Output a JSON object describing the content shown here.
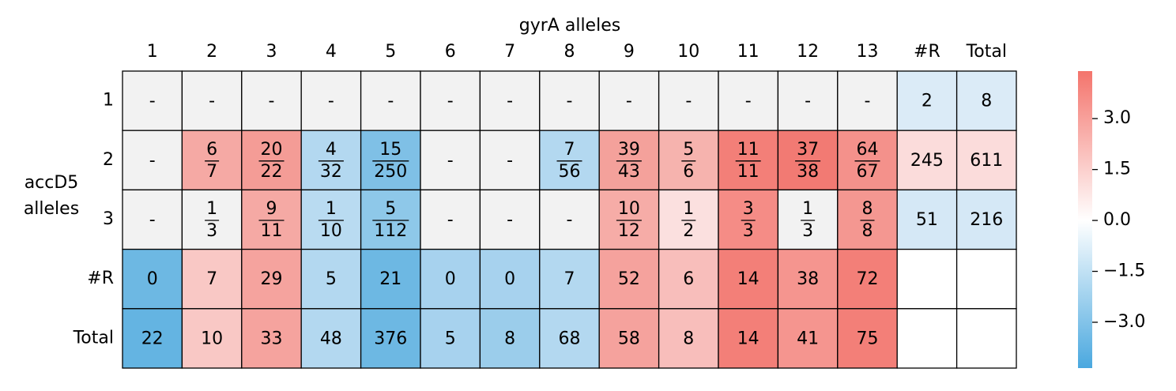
{
  "x_title": "gyrA alleles",
  "y_title": [
    "accD5",
    "alleles"
  ],
  "columns": [
    "1",
    "2",
    "3",
    "4",
    "5",
    "6",
    "7",
    "8",
    "9",
    "10",
    "11",
    "12",
    "13",
    "#R",
    "Total"
  ],
  "rows": [
    "1",
    "2",
    "3",
    "#R",
    "Total"
  ],
  "cells": [
    [
      {
        "text": "-",
        "color": "#f2f2f2"
      },
      {
        "text": "-",
        "color": "#f2f2f2"
      },
      {
        "text": "-",
        "color": "#f2f2f2"
      },
      {
        "text": "-",
        "color": "#f2f2f2"
      },
      {
        "text": "-",
        "color": "#f2f2f2"
      },
      {
        "text": "-",
        "color": "#f2f2f2"
      },
      {
        "text": "-",
        "color": "#f2f2f2"
      },
      {
        "text": "-",
        "color": "#f2f2f2"
      },
      {
        "text": "-",
        "color": "#f2f2f2"
      },
      {
        "text": "-",
        "color": "#f2f2f2"
      },
      {
        "text": "-",
        "color": "#f2f2f2"
      },
      {
        "text": "-",
        "color": "#f2f2f2"
      },
      {
        "text": "-",
        "color": "#f2f2f2"
      },
      {
        "text": 2,
        "color": "#dbebf7"
      },
      {
        "text": 8,
        "color": "#dbebf7"
      }
    ],
    [
      {
        "text": "-",
        "color": "#f2f2f2"
      },
      {
        "num": 6,
        "den": 7,
        "color": "#f5a9a4"
      },
      {
        "num": 20,
        "den": 22,
        "color": "#f49c96"
      },
      {
        "num": 4,
        "den": 32,
        "color": "#b3d8f0"
      },
      {
        "num": 15,
        "den": 250,
        "color": "#7fc0e6"
      },
      {
        "text": "-",
        "color": "#f2f2f2"
      },
      {
        "text": "-",
        "color": "#f2f2f2"
      },
      {
        "num": 7,
        "den": 56,
        "color": "#b3d8f0"
      },
      {
        "num": 39,
        "den": 43,
        "color": "#f4a19b"
      },
      {
        "num": 5,
        "den": 6,
        "color": "#f6b3ae"
      },
      {
        "num": 11,
        "den": 11,
        "color": "#f37f78"
      },
      {
        "num": 37,
        "den": 38,
        "color": "#f27a73"
      },
      {
        "num": 64,
        "den": 67,
        "color": "#f4918b"
      },
      {
        "text": 245,
        "color": "#fbdcdb"
      },
      {
        "text": 611,
        "color": "#fbdcdb"
      }
    ],
    [
      {
        "text": "-",
        "color": "#f2f2f2"
      },
      {
        "num": 1,
        "den": 3,
        "color": "#f2f2f2"
      },
      {
        "num": 9,
        "den": 11,
        "color": "#f5a9a4"
      },
      {
        "num": 1,
        "den": 10,
        "color": "#b9dbf1"
      },
      {
        "num": 5,
        "den": 112,
        "color": "#8ec8e9"
      },
      {
        "text": "-",
        "color": "#f2f2f2"
      },
      {
        "text": "-",
        "color": "#f2f2f2"
      },
      {
        "text": "-",
        "color": "#f2f2f2"
      },
      {
        "num": 10,
        "den": 12,
        "color": "#f6aca7"
      },
      {
        "num": 1,
        "den": 2,
        "color": "#fbe0df"
      },
      {
        "num": 3,
        "den": 3,
        "color": "#f58c86"
      },
      {
        "num": 1,
        "den": 3,
        "color": "#f2f2f2"
      },
      {
        "num": 8,
        "den": 8,
        "color": "#f49791"
      },
      {
        "text": 51,
        "color": "#d5e8f6"
      },
      {
        "text": 216,
        "color": "#d5e8f6"
      }
    ],
    [
      {
        "text": 0,
        "color": "#6db8e3"
      },
      {
        "text": 7,
        "color": "#f9c8c5"
      },
      {
        "text": 29,
        "color": "#f5a39e"
      },
      {
        "text": 5,
        "color": "#b3d8f0"
      },
      {
        "text": 21,
        "color": "#6db8e3"
      },
      {
        "text": 0,
        "color": "#a7d2ee"
      },
      {
        "text": 0,
        "color": "#a7d2ee"
      },
      {
        "text": 7,
        "color": "#b3d8f0"
      },
      {
        "text": 52,
        "color": "#f5a29d"
      },
      {
        "text": 6,
        "color": "#f8bebb"
      },
      {
        "text": 14,
        "color": "#f37f78"
      },
      {
        "text": 38,
        "color": "#f5958f"
      },
      {
        "text": 72,
        "color": "#f37f78"
      },
      {
        "color": "#ffffff"
      },
      {
        "color": "#ffffff"
      }
    ],
    [
      {
        "text": 22,
        "color": "#64b4e2"
      },
      {
        "text": 10,
        "color": "#f9c8c5"
      },
      {
        "text": 33,
        "color": "#f5a39e"
      },
      {
        "text": 48,
        "color": "#b3d8f0"
      },
      {
        "text": 376,
        "color": "#6db8e3"
      },
      {
        "text": 5,
        "color": "#a7d2ee"
      },
      {
        "text": 8,
        "color": "#9bcdeb"
      },
      {
        "text": 68,
        "color": "#b3d8f0"
      },
      {
        "text": 58,
        "color": "#f5a29d"
      },
      {
        "text": 8,
        "color": "#f8bebb"
      },
      {
        "text": 14,
        "color": "#f37f78"
      },
      {
        "text": 41,
        "color": "#f5958f"
      },
      {
        "text": 75,
        "color": "#f37f78"
      },
      {
        "color": "#ffffff"
      },
      {
        "color": "#ffffff"
      }
    ]
  ],
  "colorbar": {
    "lim": [
      -4.35,
      4.4
    ],
    "ticks": [
      {
        "value": 3,
        "label": "3.0"
      },
      {
        "value": 1.5,
        "label": "1.5"
      },
      {
        "value": 0,
        "label": "0.0"
      },
      {
        "value": -1.5,
        "label": "−1.5"
      },
      {
        "value": -3,
        "label": "−3.0"
      }
    ]
  }
}
